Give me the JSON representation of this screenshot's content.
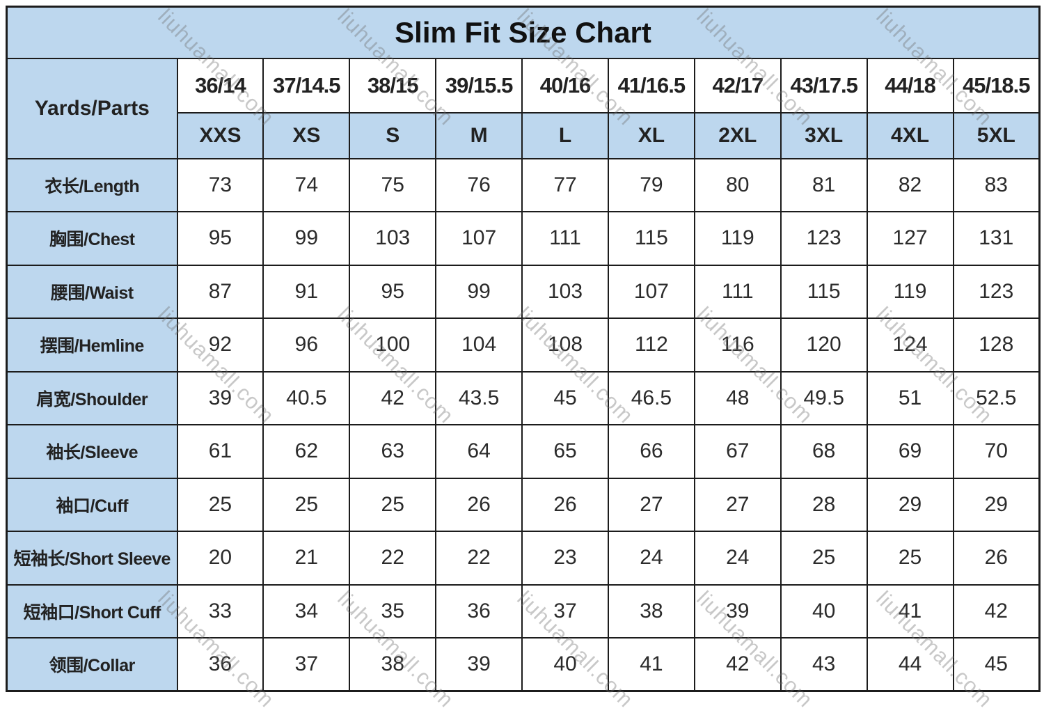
{
  "chart_data": {
    "type": "table",
    "title": "Slim Fit Size Chart",
    "corner_label": "Yards/Parts",
    "size_numbers": [
      "36/14",
      "37/14.5",
      "38/15",
      "39/15.5",
      "40/16",
      "41/16.5",
      "42/17",
      "43/17.5",
      "44/18",
      "45/18.5"
    ],
    "size_letters": [
      "XXS",
      "XS",
      "S",
      "M",
      "L",
      "XL",
      "2XL",
      "3XL",
      "4XL",
      "5XL"
    ],
    "rows": [
      {
        "label": "衣长/Length",
        "values": [
          73,
          74,
          75,
          76,
          77,
          79,
          80,
          81,
          82,
          83
        ]
      },
      {
        "label": "胸围/Chest",
        "values": [
          95,
          99,
          103,
          107,
          111,
          115,
          119,
          123,
          127,
          131
        ]
      },
      {
        "label": "腰围/Waist",
        "values": [
          87,
          91,
          95,
          99,
          103,
          107,
          111,
          115,
          119,
          123
        ]
      },
      {
        "label": "摆围/Hemline",
        "values": [
          92,
          96,
          100,
          104,
          108,
          112,
          116,
          120,
          124,
          128
        ]
      },
      {
        "label": "肩宽/Shoulder",
        "values": [
          39,
          40.5,
          42,
          43.5,
          45,
          46.5,
          48,
          49.5,
          51,
          52.5
        ]
      },
      {
        "label": "袖长/Sleeve",
        "values": [
          61,
          62,
          63,
          64,
          65,
          66,
          67,
          68,
          69,
          70
        ]
      },
      {
        "label": "袖口/Cuff",
        "values": [
          25,
          25,
          25,
          26,
          26,
          27,
          27,
          28,
          29,
          29
        ]
      },
      {
        "label": "短袖长/Short Sleeve",
        "values": [
          20,
          21,
          22,
          22,
          23,
          24,
          24,
          25,
          25,
          26
        ]
      },
      {
        "label": "短袖口/Short Cuff",
        "values": [
          33,
          34,
          35,
          36,
          37,
          38,
          39,
          40,
          41,
          42
        ]
      },
      {
        "label": "领围/Collar",
        "values": [
          36,
          37,
          38,
          39,
          40,
          41,
          42,
          43,
          44,
          45
        ]
      }
    ]
  },
  "watermark": {
    "text": "liuhuamall.com"
  },
  "colors": {
    "header_bg": "#BDD7EE",
    "body_bg": "#FFFFFF",
    "border": "#1C1C1C",
    "text": "#222222"
  }
}
